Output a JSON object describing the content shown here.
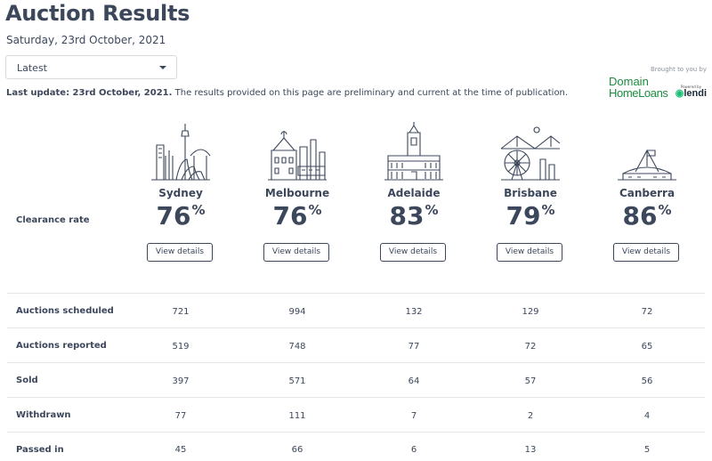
{
  "header": {
    "title": "Auction Results",
    "date": "Saturday, 23rd October, 2021"
  },
  "filter": {
    "selected": "Latest"
  },
  "update": {
    "bold": "Last update: 23rd October, 2021.",
    "text": " The results provided on this page are preliminary and current at the time of publication."
  },
  "sponsor": {
    "brought": "Brought to you by",
    "domain_line1": "Domain",
    "domain_line2": "HomeLoans",
    "powered": "Powered by",
    "lendi": "lendi"
  },
  "clearance_label": "Clearance rate",
  "cities": [
    {
      "name": "Sydney",
      "rate": "76",
      "unit": "%",
      "button": "View details",
      "icon": "sydney-skyline-icon"
    },
    {
      "name": "Melbourne",
      "rate": "76",
      "unit": "%",
      "button": "View details",
      "icon": "melbourne-skyline-icon"
    },
    {
      "name": "Adelaide",
      "rate": "83",
      "unit": "%",
      "button": "View details",
      "icon": "adelaide-skyline-icon"
    },
    {
      "name": "Brisbane",
      "rate": "79",
      "unit": "%",
      "button": "View details",
      "icon": "brisbane-skyline-icon"
    },
    {
      "name": "Canberra",
      "rate": "86",
      "unit": "%",
      "button": "View details",
      "icon": "canberra-skyline-icon"
    }
  ],
  "rows": [
    {
      "label": "Auctions scheduled",
      "values": [
        "721",
        "994",
        "132",
        "129",
        "72"
      ]
    },
    {
      "label": "Auctions reported",
      "values": [
        "519",
        "748",
        "77",
        "72",
        "65"
      ]
    },
    {
      "label": "Sold",
      "values": [
        "397",
        "571",
        "64",
        "57",
        "56"
      ]
    },
    {
      "label": "Withdrawn",
      "values": [
        "77",
        "111",
        "7",
        "2",
        "4"
      ]
    },
    {
      "label": "Passed in",
      "values": [
        "45",
        "66",
        "6",
        "13",
        "5"
      ]
    }
  ]
}
